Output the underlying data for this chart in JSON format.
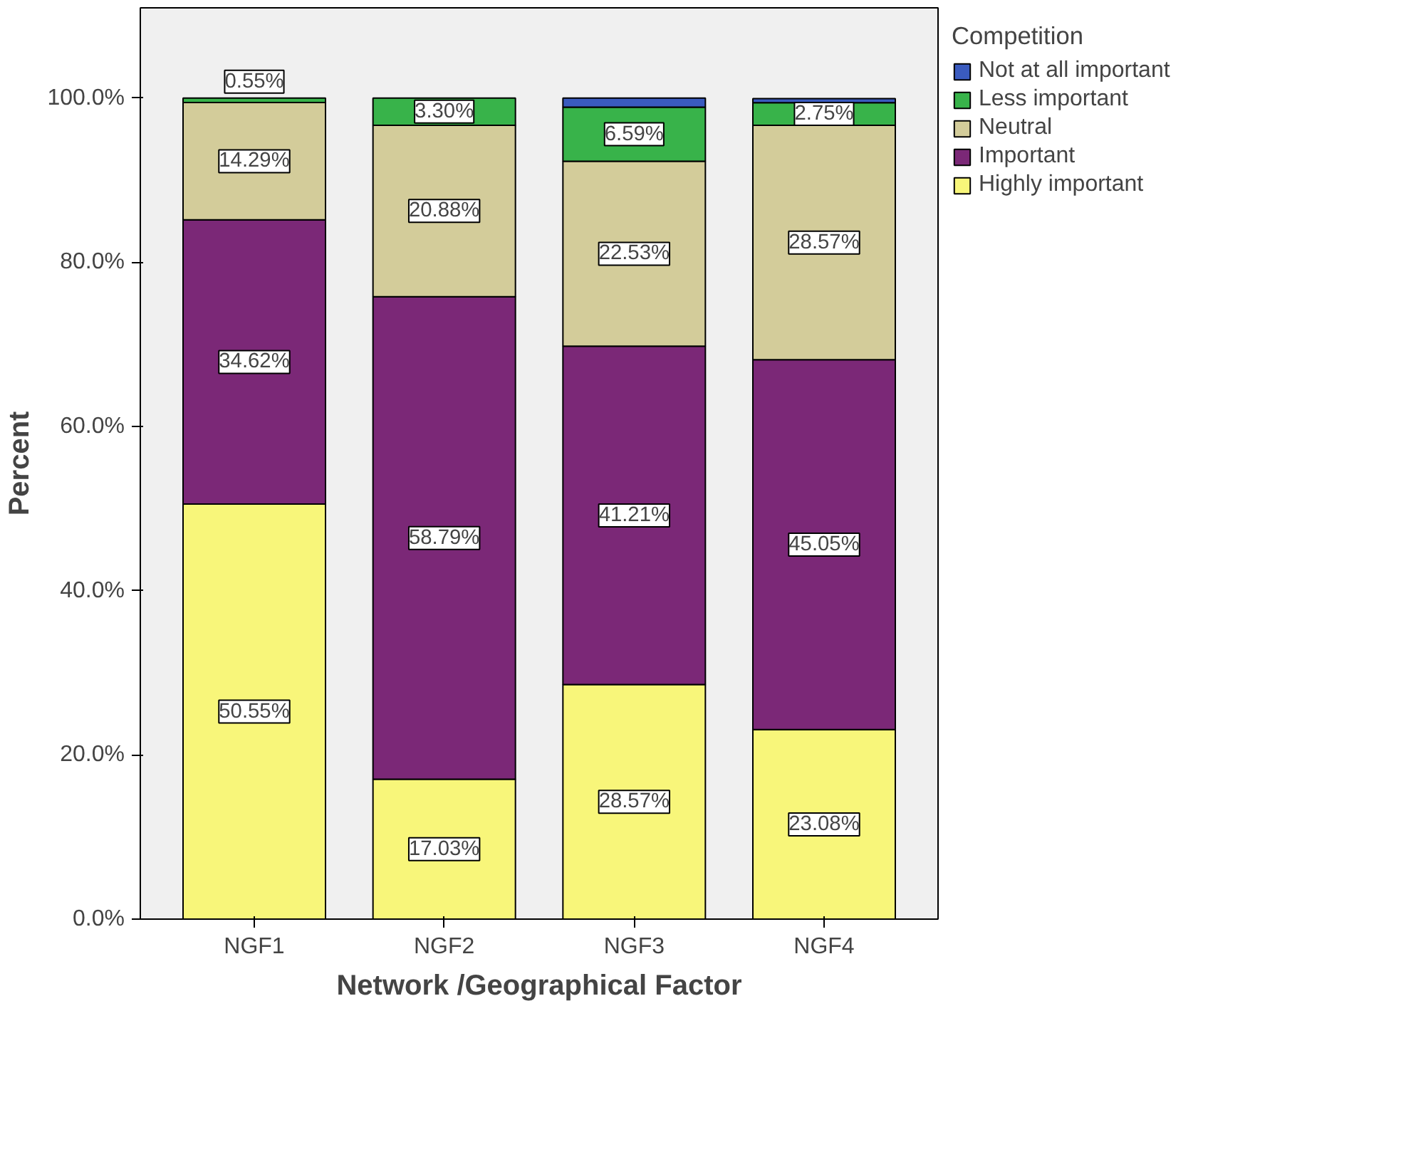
{
  "chart_data": {
    "type": "bar",
    "stacked": true,
    "xlabel": "Network /Geographical Factor",
    "ylabel": "Percent",
    "legend_title": "Competition",
    "legend": "top right",
    "grid": false,
    "categories": [
      "NGF1",
      "NGF2",
      "NGF3",
      "NGF4"
    ],
    "ylim": [
      0,
      111
    ],
    "yticks": [
      {
        "value": 0,
        "label": "0.0%"
      },
      {
        "value": 20,
        "label": "20.0%"
      },
      {
        "value": 40,
        "label": "40.0%"
      },
      {
        "value": 60,
        "label": "60.0%"
      },
      {
        "value": 80,
        "label": "80.0%"
      },
      {
        "value": 100,
        "label": "100.0%"
      }
    ],
    "series": [
      {
        "name": "Highly important",
        "color": "#f8f67a",
        "values": [
          50.55,
          17.03,
          28.57,
          23.08
        ],
        "value_labels": [
          "50.55%",
          "17.03%",
          "28.57%",
          "23.08%"
        ]
      },
      {
        "name": "Important",
        "color": "#7b2877",
        "values": [
          34.62,
          58.79,
          41.21,
          45.05
        ],
        "value_labels": [
          "34.62%",
          "58.79%",
          "41.21%",
          "45.05%"
        ]
      },
      {
        "name": "Neutral",
        "color": "#d3cc9a",
        "values": [
          14.29,
          20.88,
          22.53,
          28.57
        ],
        "value_labels": [
          "14.29%",
          "20.88%",
          "22.53%",
          "28.57%"
        ]
      },
      {
        "name": "Less important",
        "color": "#38b34a",
        "values": [
          0.55,
          3.3,
          6.59,
          2.75
        ],
        "value_labels": [
          "0.55%",
          "3.30%",
          "6.59%",
          "2.75%"
        ]
      },
      {
        "name": "Not at all important",
        "color": "#3a5bbf",
        "values": [
          null,
          null,
          1.1,
          0.5
        ],
        "value_labels": [
          null,
          null,
          null,
          null
        ]
      }
    ]
  }
}
